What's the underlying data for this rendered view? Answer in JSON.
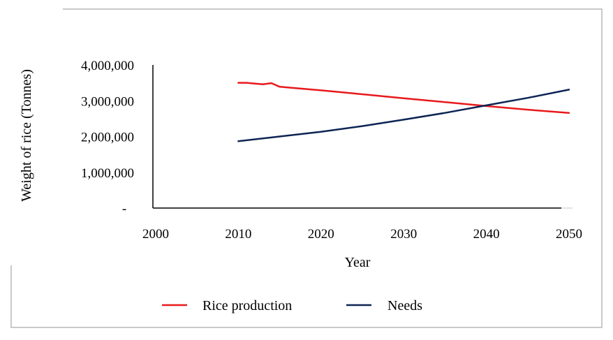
{
  "chart_data": {
    "type": "line",
    "xlabel": "Year",
    "ylabel": "Weight of rice (Tonnes)",
    "xlim": [
      2000,
      2050
    ],
    "ylim": [
      0,
      4000000
    ],
    "x_ticks": [
      "2000",
      "2010",
      "2020",
      "2030",
      "2040",
      "2050"
    ],
    "y_ticks": [
      "-",
      "1,000,000",
      "2,000,000",
      "3,000,000",
      "4,000,000"
    ],
    "legend_position": "bottom",
    "series": [
      {
        "name": "Rice production",
        "color": "#e8191b",
        "x": [
          2010,
          2011,
          2012,
          2013,
          2014,
          2015,
          2020,
          2025,
          2030,
          2035,
          2040,
          2045,
          2050
        ],
        "values": [
          3500000,
          3500000,
          3480000,
          3460000,
          3490000,
          3390000,
          3290000,
          3180000,
          3070000,
          2960000,
          2850000,
          2750000,
          2660000
        ]
      },
      {
        "name": "Needs",
        "color": "#0d2454",
        "x": [
          2010,
          2015,
          2020,
          2025,
          2030,
          2035,
          2040,
          2045,
          2050
        ],
        "values": [
          1870000,
          2000000,
          2130000,
          2290000,
          2470000,
          2660000,
          2870000,
          3080000,
          3310000
        ]
      }
    ]
  }
}
